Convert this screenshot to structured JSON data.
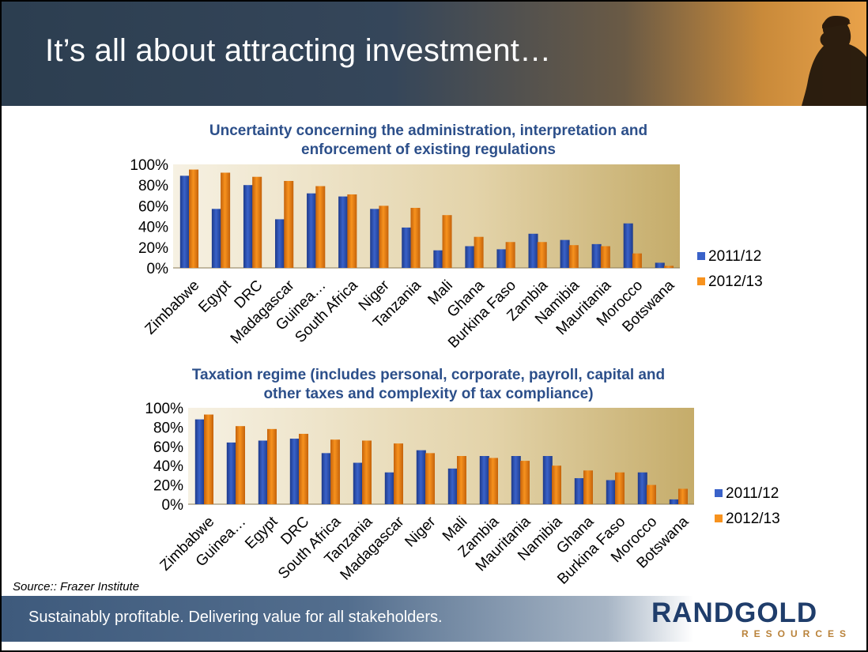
{
  "header": {
    "title": "It’s all about attracting investment…"
  },
  "source": "Source:: Frazer Institute",
  "footer": {
    "tagline": "Sustainably profitable.  Delivering value for all stakeholders."
  },
  "logo": {
    "name": "RANDGOLD",
    "sub": "RESOURCES",
    "gold": "#c69437",
    "navy": "#1f3d6b"
  },
  "colors": {
    "series_2011": "#3a62c9",
    "series_2012": "#f7921e",
    "title_blue": "#2c4f8a"
  },
  "chart_data": [
    {
      "type": "bar",
      "title": "Uncertainty concerning the administration, interpretation and enforcement of existing regulations",
      "title_lines": [
        "Uncertainty concerning the administration, interpretation and",
        "enforcement of existing regulations"
      ],
      "categories": [
        "Zimbabwe",
        "Egypt",
        "DRC",
        "Madagascar",
        "Guinea…",
        "South Africa",
        "Niger",
        "Tanzania",
        "Mali",
        "Ghana",
        "Burkina Faso",
        "Zambia",
        "Namibia",
        "Mauritania",
        "Morocco",
        "Botswana"
      ],
      "series": [
        {
          "name": "2011/12",
          "values": [
            89,
            57,
            80,
            47,
            72,
            69,
            57,
            39,
            17,
            21,
            18,
            33,
            27,
            23,
            43,
            5
          ]
        },
        {
          "name": "2012/13",
          "values": [
            95,
            92,
            88,
            84,
            79,
            71,
            60,
            58,
            51,
            30,
            25,
            25,
            22,
            21,
            14,
            2
          ]
        }
      ],
      "yticks": [
        "0%",
        "20%",
        "40%",
        "60%",
        "80%",
        "100%"
      ],
      "ylim": [
        0,
        100
      ],
      "legend": "right"
    },
    {
      "type": "bar",
      "title": "Taxation regime (includes personal, corporate, payroll, capital and other taxes and complexity of tax compliance)",
      "title_lines": [
        "Taxation regime (includes personal, corporate, payroll, capital and",
        "other taxes and complexity of tax compliance)"
      ],
      "categories": [
        "Zimbabwe",
        "Guinea…",
        "Egypt",
        "DRC",
        "South Africa",
        "Tanzania",
        "Madagascar",
        "Niger",
        "Mali",
        "Zambia",
        "Mauritania",
        "Namibia",
        "Ghana",
        "Burkina Faso",
        "Morocco",
        "Botswana"
      ],
      "series": [
        {
          "name": "2011/12",
          "values": [
            88,
            64,
            66,
            68,
            53,
            43,
            33,
            56,
            37,
            50,
            50,
            50,
            27,
            25,
            33,
            5
          ]
        },
        {
          "name": "2012/13",
          "values": [
            93,
            81,
            78,
            73,
            67,
            66,
            63,
            53,
            50,
            48,
            45,
            40,
            35,
            33,
            20,
            16
          ]
        }
      ],
      "yticks": [
        "0%",
        "20%",
        "40%",
        "60%",
        "80%",
        "100%"
      ],
      "ylim": [
        0,
        100
      ],
      "legend": "right"
    }
  ]
}
